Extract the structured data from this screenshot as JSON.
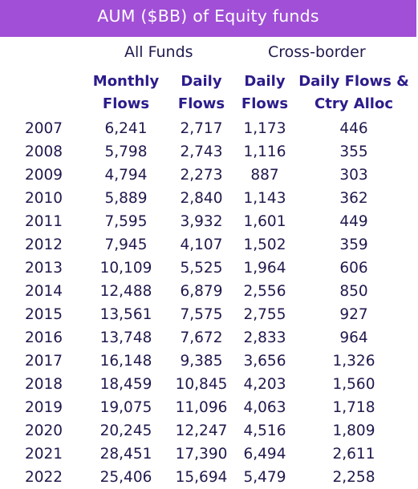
{
  "title": "AUM ($BB) of Equity funds",
  "groups": [
    "All Funds",
    "Cross-border"
  ],
  "headers": [
    [
      "Monthly",
      "Flows"
    ],
    [
      "Daily",
      "Flows"
    ],
    [
      "Daily",
      "Flows"
    ],
    [
      "Daily Flows &",
      "Ctry Alloc"
    ]
  ],
  "colors": {
    "title_bg": "#a04fd6",
    "header_text": "#2b1c8a",
    "body_text": "#1f1a4d"
  },
  "rows": [
    {
      "year": "2007",
      "v": [
        "6,241",
        "2,717",
        "1,173",
        "446"
      ]
    },
    {
      "year": "2008",
      "v": [
        "5,798",
        "2,743",
        "1,116",
        "355"
      ]
    },
    {
      "year": "2009",
      "v": [
        "4,794",
        "2,273",
        "887",
        "303"
      ]
    },
    {
      "year": "2010",
      "v": [
        "5,889",
        "2,840",
        "1,143",
        "362"
      ]
    },
    {
      "year": "2011",
      "v": [
        "7,595",
        "3,932",
        "1,601",
        "449"
      ]
    },
    {
      "year": "2012",
      "v": [
        "7,945",
        "4,107",
        "1,502",
        "359"
      ]
    },
    {
      "year": "2013",
      "v": [
        "10,109",
        "5,525",
        "1,964",
        "606"
      ]
    },
    {
      "year": "2014",
      "v": [
        "12,488",
        "6,879",
        "2,556",
        "850"
      ]
    },
    {
      "year": "2015",
      "v": [
        "13,561",
        "7,575",
        "2,755",
        "927"
      ]
    },
    {
      "year": "2016",
      "v": [
        "13,748",
        "7,672",
        "2,833",
        "964"
      ]
    },
    {
      "year": "2017",
      "v": [
        "16,148",
        "9,385",
        "3,656",
        "1,326"
      ]
    },
    {
      "year": "2018",
      "v": [
        "18,459",
        "10,845",
        "4,203",
        "1,560"
      ]
    },
    {
      "year": "2019",
      "v": [
        "19,075",
        "11,096",
        "4,063",
        "1,718"
      ]
    },
    {
      "year": "2020",
      "v": [
        "20,245",
        "12,247",
        "4,516",
        "1,809"
      ]
    },
    {
      "year": "2021",
      "v": [
        "28,451",
        "17,390",
        "6,494",
        "2,611"
      ]
    },
    {
      "year": "2022",
      "v": [
        "25,406",
        "15,694",
        "5,479",
        "2,258"
      ]
    }
  ]
}
